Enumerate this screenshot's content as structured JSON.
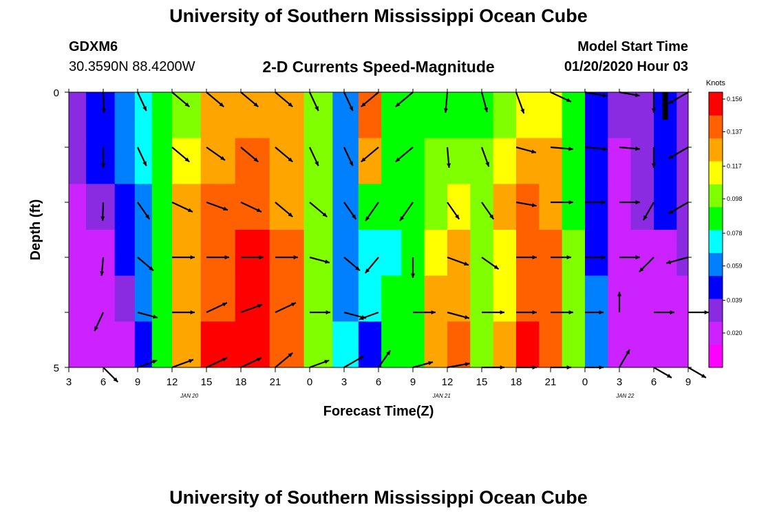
{
  "header": {
    "title": "University of Southern Mississippi Ocean Cube",
    "station_id": "GDXM6",
    "coordinates": "30.3590N 88.4200W",
    "subtitle": "2-D Currents Speed-Magnitude",
    "model_start_label": "Model Start Time",
    "model_start_value": "01/20/2020 Hour 03"
  },
  "footer": {
    "title": "University of Southern Mississippi Ocean Cube"
  },
  "colors": {
    "palette": [
      "#ff00ff",
      "#cc22ff",
      "#8a2be2",
      "#0000ff",
      "#0080ff",
      "#00ffff",
      "#00ff00",
      "#80ff00",
      "#ffff00",
      "#ffa500",
      "#ff6000",
      "#ff0000"
    ],
    "arrow": "#000000"
  },
  "chart_data": {
    "type": "heatmap",
    "title": "2-D Currents Speed-Magnitude",
    "xlabel": "Forecast Time(Z)",
    "ylabel": "Depth (ft)",
    "ylim": [
      0,
      5
    ],
    "y_ticks": [
      "0",
      "5"
    ],
    "x_hours_from_start": [
      0,
      3,
      6,
      9,
      12,
      15,
      18,
      21,
      24,
      27,
      30,
      33,
      36,
      39,
      42,
      45,
      48,
      51,
      54
    ],
    "x_tick_labels": [
      "3",
      "6",
      "9",
      "12",
      "15",
      "18",
      "21",
      "0",
      "3",
      "6",
      "9",
      "12",
      "15",
      "18",
      "21",
      "0",
      "3",
      "6",
      "9"
    ],
    "date_labels": [
      {
        "hour": 10.5,
        "label": "JAN 20"
      },
      {
        "hour": 32.5,
        "label": "JAN 21"
      },
      {
        "hour": 48.5,
        "label": "JAN 22"
      }
    ],
    "colorbar": {
      "title": "Knots",
      "min": 0.0,
      "max": 0.16,
      "tick_labels": [
        "0.156",
        "0.137",
        "0.117",
        "0.098",
        "0.078",
        "0.059",
        "0.039",
        "0.020"
      ],
      "tick_values": [
        0.156,
        0.137,
        0.117,
        0.098,
        0.078,
        0.059,
        0.039,
        0.02
      ]
    },
    "speed_time_hours": [
      0,
      3,
      5,
      6.5,
      8,
      10,
      13,
      16,
      19,
      22,
      24,
      26.5,
      28,
      30,
      32,
      34,
      36,
      38,
      40,
      42,
      44,
      46,
      48,
      50,
      52,
      54
    ],
    "speed_depth_rows": [
      [
        0.03,
        0.04,
        0.06,
        0.07,
        0.08,
        0.1,
        0.12,
        0.13,
        0.12,
        0.1,
        0.06,
        0.14,
        0.09,
        0.09,
        0.09,
        0.09,
        0.09,
        0.1,
        0.11,
        0.11,
        0.08,
        0.05,
        0.03,
        0.035,
        0.04,
        0.03
      ],
      [
        0.03,
        0.04,
        0.06,
        0.07,
        0.085,
        0.11,
        0.13,
        0.14,
        0.13,
        0.1,
        0.06,
        0.13,
        0.085,
        0.085,
        0.095,
        0.1,
        0.1,
        0.11,
        0.125,
        0.12,
        0.08,
        0.045,
        0.025,
        0.035,
        0.045,
        0.03
      ],
      [
        0.025,
        0.03,
        0.045,
        0.065,
        0.09,
        0.12,
        0.14,
        0.145,
        0.13,
        0.1,
        0.055,
        0.08,
        0.08,
        0.09,
        0.105,
        0.11,
        0.105,
        0.12,
        0.14,
        0.13,
        0.09,
        0.045,
        0.025,
        0.03,
        0.04,
        0.03
      ],
      [
        0.02,
        0.025,
        0.04,
        0.06,
        0.09,
        0.125,
        0.145,
        0.15,
        0.135,
        0.1,
        0.06,
        0.07,
        0.075,
        0.09,
        0.11,
        0.12,
        0.1,
        0.115,
        0.145,
        0.14,
        0.095,
        0.05,
        0.025,
        0.02,
        0.025,
        0.03
      ],
      [
        0.02,
        0.02,
        0.03,
        0.055,
        0.085,
        0.125,
        0.145,
        0.15,
        0.14,
        0.1,
        0.065,
        0.07,
        0.08,
        0.09,
        0.12,
        0.13,
        0.1,
        0.11,
        0.14,
        0.135,
        0.1,
        0.055,
        0.025,
        0.02,
        0.02,
        0.025
      ],
      [
        0.02,
        0.02,
        0.025,
        0.05,
        0.085,
        0.13,
        0.15,
        0.155,
        0.14,
        0.105,
        0.07,
        0.05,
        0.085,
        0.09,
        0.12,
        0.135,
        0.1,
        0.12,
        0.15,
        0.14,
        0.1,
        0.06,
        0.025,
        0.02,
        0.02,
        0.02
      ]
    ],
    "vector_time_hours": [
      3,
      6,
      9,
      12,
      15,
      18,
      21,
      24,
      27,
      30,
      33,
      36,
      39,
      42,
      45,
      48,
      51,
      54
    ],
    "vector_depth_rows": [
      0.0,
      1.0,
      2.0,
      3.0,
      4.0,
      5.0
    ],
    "vector_angles_deg": [
      [
        88,
        65,
        40,
        40,
        40,
        40,
        65,
        65,
        140,
        140,
        95,
        75,
        70,
        25,
        10,
        10,
        90,
        150
      ],
      [
        90,
        65,
        40,
        35,
        40,
        40,
        65,
        65,
        140,
        140,
        85,
        70,
        15,
        5,
        5,
        5,
        90,
        150
      ],
      [
        92,
        55,
        25,
        20,
        25,
        40,
        40,
        55,
        125,
        125,
        55,
        55,
        10,
        0,
        0,
        0,
        120,
        150
      ],
      [
        95,
        40,
        0,
        0,
        0,
        0,
        15,
        40,
        130,
        90,
        20,
        35,
        0,
        0,
        0,
        0,
        135,
        165
      ],
      [
        115,
        15,
        0,
        335,
        340,
        335,
        0,
        15,
        160,
        0,
        15,
        0,
        0,
        0,
        0,
        270,
        0,
        0
      ],
      [
        45,
        340,
        340,
        335,
        335,
        320,
        340,
        330,
        305,
        345,
        350,
        0,
        0,
        0,
        0,
        300,
        30,
        30
      ]
    ],
    "vector_lengths": [
      [
        1.0,
        1.0,
        1.1,
        1.1,
        1.1,
        1.1,
        1.0,
        1.0,
        1.1,
        1.1,
        1.0,
        1.0,
        1.1,
        1.1,
        1.1,
        1.0,
        1.0,
        1.1
      ],
      [
        1.0,
        1.0,
        1.1,
        1.1,
        1.1,
        1.1,
        1.0,
        1.0,
        1.1,
        1.1,
        1.0,
        1.0,
        1.0,
        1.1,
        1.1,
        1.0,
        1.0,
        1.1
      ],
      [
        0.9,
        1.0,
        1.1,
        1.1,
        1.1,
        1.1,
        1.1,
        1.0,
        1.1,
        1.1,
        1.0,
        1.0,
        1.0,
        1.1,
        1.0,
        1.0,
        1.0,
        1.1
      ],
      [
        0.9,
        1.0,
        1.1,
        1.1,
        1.1,
        1.1,
        1.0,
        1.0,
        1.0,
        1.0,
        1.1,
        1.0,
        1.0,
        1.0,
        1.0,
        1.0,
        1.0,
        1.1
      ],
      [
        1.0,
        1.0,
        1.1,
        1.1,
        1.1,
        1.1,
        1.0,
        1.1,
        1.0,
        1.1,
        1.1,
        1.1,
        1.0,
        1.1,
        0.9,
        1.0,
        1.0,
        1.0
      ],
      [
        1.0,
        1.0,
        1.1,
        1.1,
        1.1,
        1.1,
        1.0,
        1.1,
        1.0,
        1.0,
        1.1,
        1.1,
        1.0,
        1.0,
        0.9,
        1.0,
        1.0,
        1.0
      ]
    ],
    "scale_bar": {
      "hour": 52,
      "depth_from": 0.0,
      "depth_to": 0.5
    }
  }
}
